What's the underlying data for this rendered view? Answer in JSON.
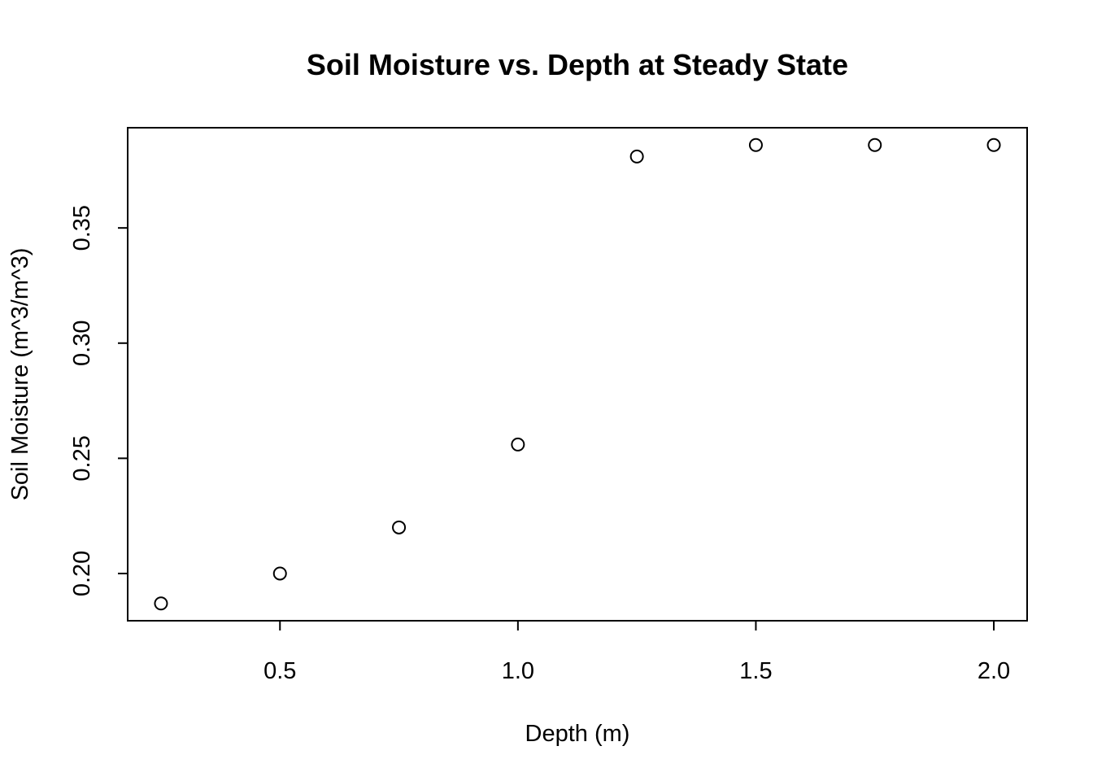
{
  "chart_data": {
    "type": "scatter",
    "title": "Soil Moisture vs. Depth at Steady State",
    "xlabel": "Depth (m)",
    "ylabel": "Soil Moisture (m^3/m^3)",
    "xlim": [
      0.18,
      2.07
    ],
    "ylim": [
      0.1795,
      0.3935
    ],
    "x_ticks": [
      0.5,
      1.0,
      1.5,
      2.0
    ],
    "x_tick_labels": [
      "0.5",
      "1.0",
      "1.5",
      "2.0"
    ],
    "y_ticks": [
      0.2,
      0.25,
      0.3,
      0.35
    ],
    "y_tick_labels": [
      "0.20",
      "0.25",
      "0.30",
      "0.35"
    ],
    "grid": false,
    "marker": "open-circle",
    "series": [
      {
        "x": [
          0.25,
          0.5,
          0.75,
          1.0,
          1.25,
          1.5,
          1.75,
          2.0
        ],
        "y": [
          0.187,
          0.2,
          0.22,
          0.256,
          0.381,
          0.386,
          0.386,
          0.386
        ]
      }
    ],
    "colors": {
      "marker": "#000000",
      "axes": "#000000"
    }
  }
}
